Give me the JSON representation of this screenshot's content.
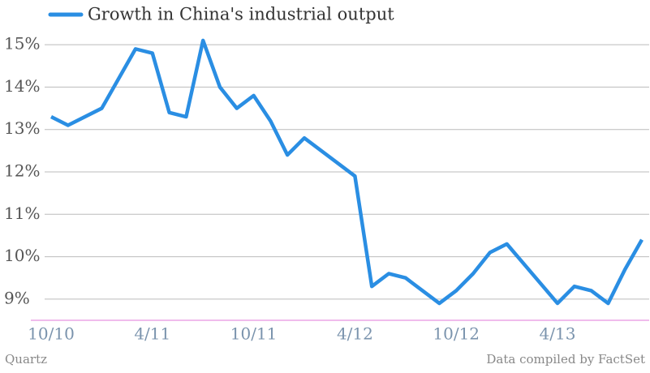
{
  "chart_data": {
    "type": "line",
    "legend": "top-left",
    "source": "Quartz",
    "note": "Data compiled by FactSet",
    "x": [
      "2010-10",
      "2010-11",
      "2011-01",
      "2011-03",
      "2011-04",
      "2011-05",
      "2011-06",
      "2011-07",
      "2011-08",
      "2011-09",
      "2011-10",
      "2011-11",
      "2011-12",
      "2012-01",
      "2012-04",
      "2012-05",
      "2012-06",
      "2012-07",
      "2012-09",
      "2012-10",
      "2012-11",
      "2012-12",
      "2013-01",
      "2013-04",
      "2013-05",
      "2013-06",
      "2013-07",
      "2013-08",
      "2013-09"
    ],
    "series": [
      {
        "name": "Growth in China's industrial output",
        "color": "#2a8ee3",
        "values": [
          13.3,
          13.1,
          13.5,
          14.9,
          14.8,
          13.4,
          13.3,
          15.1,
          14.0,
          13.5,
          13.8,
          13.2,
          12.4,
          12.8,
          11.9,
          9.3,
          9.6,
          9.5,
          8.9,
          9.2,
          9.6,
          10.1,
          10.3,
          8.9,
          9.3,
          9.2,
          8.9,
          9.7,
          10.4
        ]
      }
    ],
    "xticks": [
      {
        "value": "2010-10",
        "label": "10/10"
      },
      {
        "value": "2011-04",
        "label": "4/11"
      },
      {
        "value": "2011-10",
        "label": "10/11"
      },
      {
        "value": "2012-04",
        "label": "4/12"
      },
      {
        "value": "2012-10",
        "label": "10/12"
      },
      {
        "value": "2013-04",
        "label": "4/13"
      }
    ],
    "ylim": [
      8.5,
      15.5
    ],
    "yticks": [
      {
        "value": 9,
        "label": "9%"
      },
      {
        "value": 10,
        "label": "10%"
      },
      {
        "value": 11,
        "label": "11%"
      },
      {
        "value": 12,
        "label": "12%"
      },
      {
        "value": 13,
        "label": "13%"
      },
      {
        "value": 14,
        "label": "14%"
      },
      {
        "value": 15,
        "label": "15%"
      }
    ],
    "grid": true
  }
}
